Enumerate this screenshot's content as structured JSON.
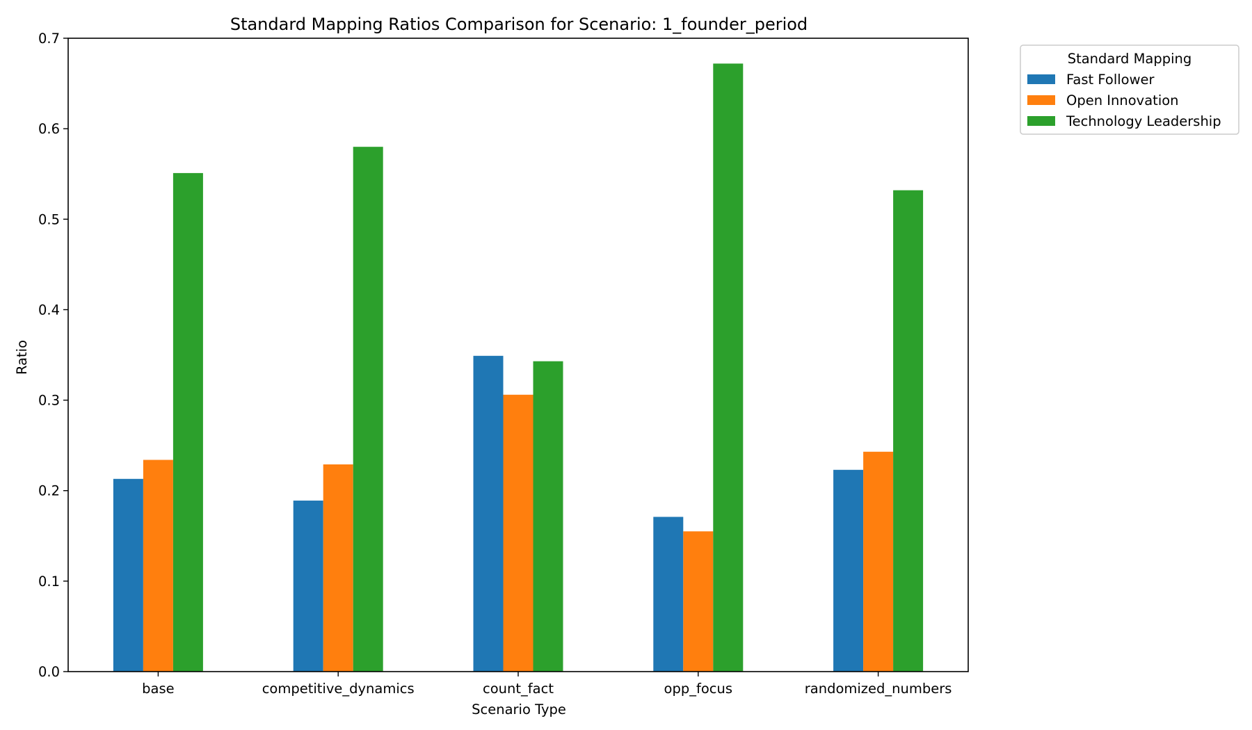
{
  "chart_data": {
    "type": "bar",
    "title": "Standard Mapping Ratios Comparison for Scenario: 1_founder_period",
    "xlabel": "Scenario Type",
    "ylabel": "Ratio",
    "categories": [
      "base",
      "competitive_dynamics",
      "count_fact",
      "opp_focus",
      "randomized_numbers"
    ],
    "ylim": [
      0,
      0.7
    ],
    "yticks": [
      "0.0",
      "0.1",
      "0.2",
      "0.3",
      "0.4",
      "0.5",
      "0.6",
      "0.7"
    ],
    "grid": false,
    "legend": {
      "title": "Standard Mapping",
      "position": "outside-top-right"
    },
    "series": [
      {
        "name": "Fast Follower",
        "color": "#1f77b4",
        "values": [
          0.213,
          0.189,
          0.349,
          0.171,
          0.223
        ]
      },
      {
        "name": "Open Innovation",
        "color": "#ff7f0e",
        "values": [
          0.234,
          0.229,
          0.306,
          0.155,
          0.243
        ]
      },
      {
        "name": "Technology Leadership",
        "color": "#2ca02c",
        "values": [
          0.551,
          0.58,
          0.343,
          0.672,
          0.532
        ]
      }
    ]
  }
}
